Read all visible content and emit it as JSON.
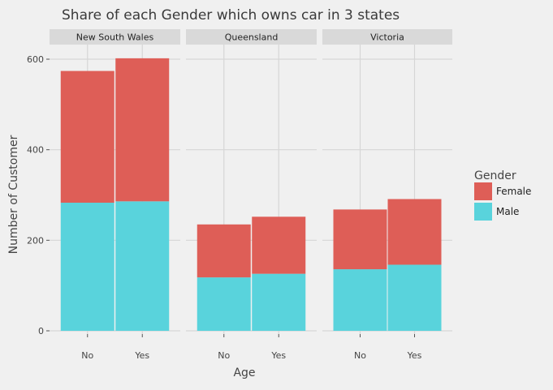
{
  "chart_data": {
    "type": "bar",
    "stacked": true,
    "title": "Share of each Gender which owns car in 3 states",
    "xlabel": "Age",
    "ylabel": "Number of Customer",
    "ylim": [
      0,
      600
    ],
    "yticks": [
      0,
      200,
      400,
      600
    ],
    "grid": true,
    "legend": {
      "title": "Gender",
      "position": "right"
    },
    "categories": [
      "No",
      "Yes"
    ],
    "facets": [
      {
        "label": "New South Wales",
        "series": [
          {
            "name": "Male",
            "values": [
              283,
              286
            ]
          },
          {
            "name": "Female",
            "values": [
              291,
              316
            ]
          }
        ]
      },
      {
        "label": "Queensland",
        "series": [
          {
            "name": "Male",
            "values": [
              118,
              126
            ]
          },
          {
            "name": "Female",
            "values": [
              117,
              126
            ]
          }
        ]
      },
      {
        "label": "Victoria",
        "series": [
          {
            "name": "Male",
            "values": [
              136,
              146
            ]
          },
          {
            "name": "Female",
            "values": [
              132,
              145
            ]
          }
        ]
      }
    ],
    "colors": {
      "Female": "#de5e57",
      "Male": "#59d3dc"
    }
  }
}
